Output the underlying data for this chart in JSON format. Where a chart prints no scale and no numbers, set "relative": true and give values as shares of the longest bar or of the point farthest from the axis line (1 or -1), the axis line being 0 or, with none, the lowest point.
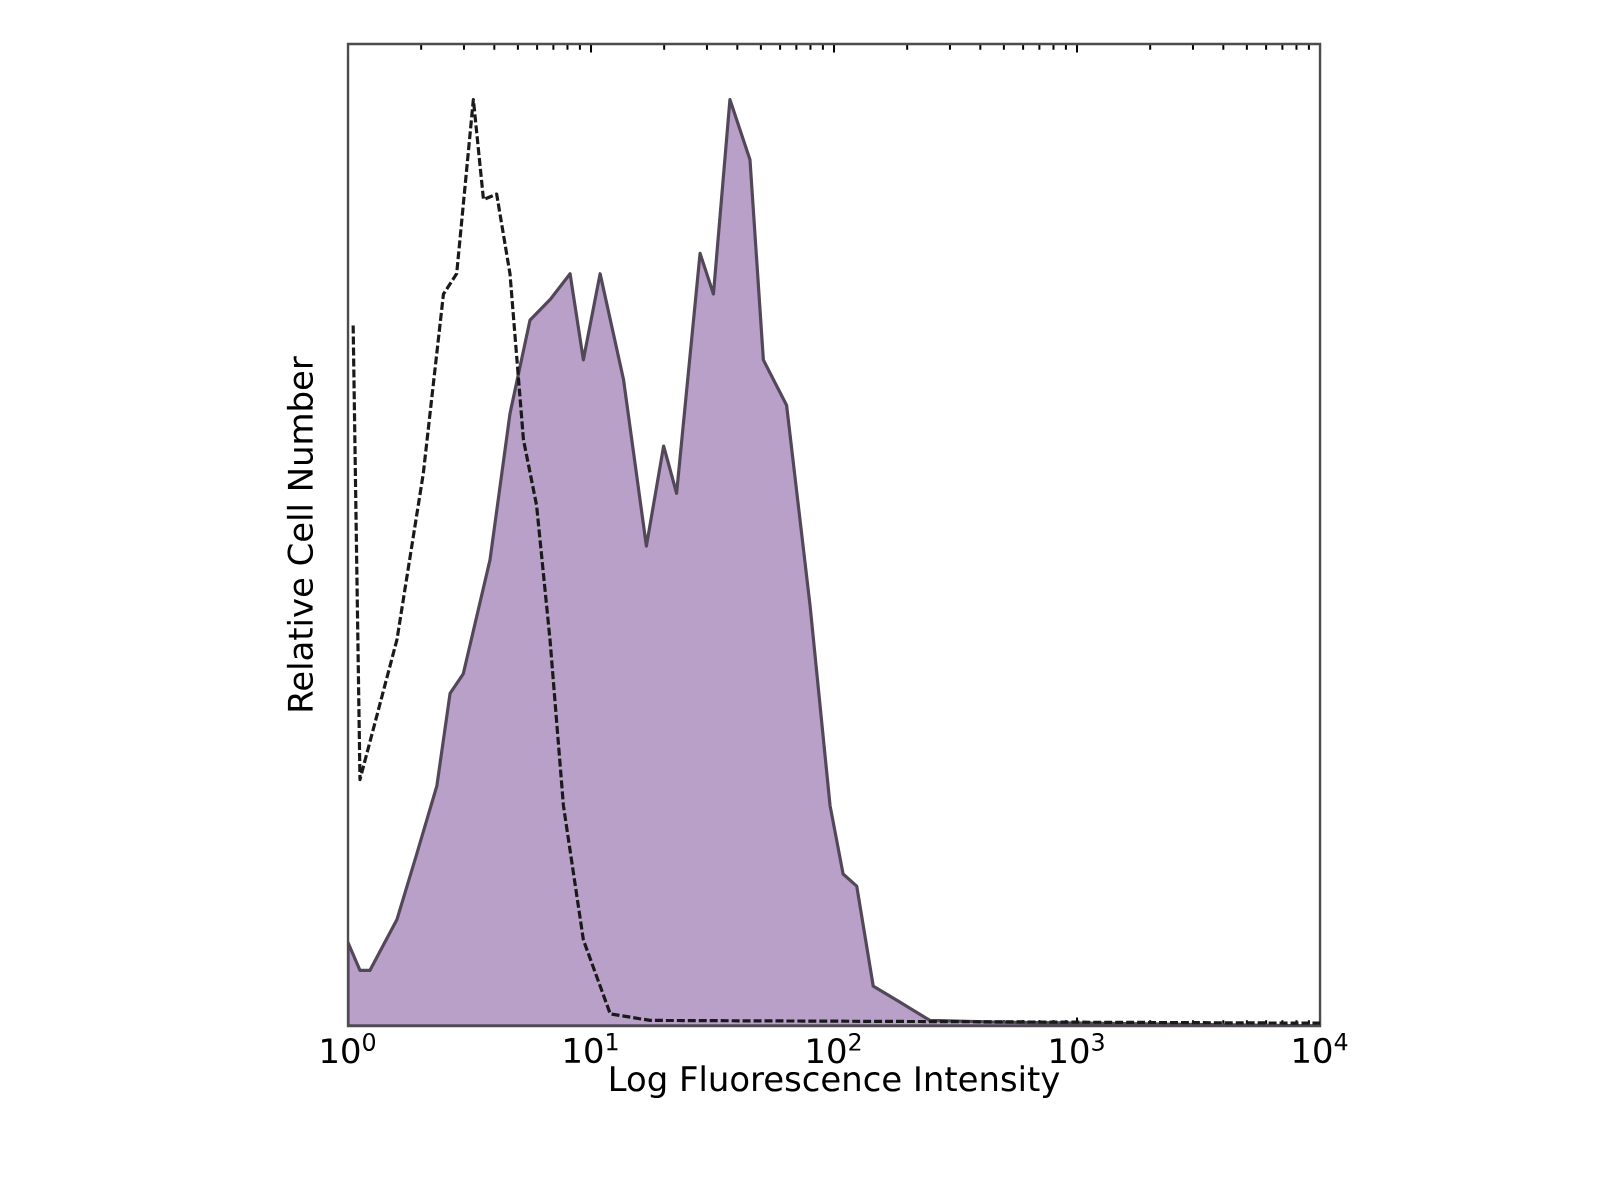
{
  "chart_data": {
    "type": "area",
    "relative": true,
    "log": "x",
    "grid": false,
    "xlabel": "Log Fluorescence Intensity",
    "ylabel": "Relative Cell Number",
    "xlim": [
      1,
      10000
    ],
    "xticks": [
      {
        "value": 1,
        "label": "10$^{0}$"
      },
      {
        "value": 10,
        "label": "10$^{1}$"
      },
      {
        "value": 100,
        "label": "10$^{2}$"
      },
      {
        "value": 1000,
        "label": "10$^{3}$"
      },
      {
        "value": 10000,
        "label": "10$^{4}$"
      }
    ],
    "series": [
      {
        "color": "#b8a0c8",
        "line_style": "solid",
        "x": [
          1.0,
          1.12,
          1.23,
          1.59,
          1.92,
          2.32,
          2.63,
          2.98,
          3.84,
          4.64,
          5.61,
          6.78,
          8.2,
          9.3,
          10.9,
          13.6,
          16.9,
          19.9,
          22.5,
          28.1,
          31.9,
          37.3,
          45.1,
          51.2,
          63.8,
          79.7,
          96.3,
          109,
          124,
          145,
          181,
          248,
          500,
          10000
        ],
        "values": [
          0.09,
          0.06,
          0.06,
          0.115,
          0.186,
          0.259,
          0.359,
          0.38,
          0.503,
          0.661,
          0.762,
          0.784,
          0.812,
          0.719,
          0.812,
          0.698,
          0.518,
          0.626,
          0.575,
          0.834,
          0.79,
          1.0,
          0.935,
          0.719,
          0.67,
          0.454,
          0.238,
          0.164,
          0.151,
          0.043,
          0.028,
          0.006,
          0.004,
          0.0
        ]
      },
      {
        "type": "line",
        "color": "#1a1a1a",
        "line_style": "dashed",
        "x": [
          1.05,
          1.12,
          1.59,
          2.04,
          2.47,
          2.8,
          3.28,
          3.61,
          4.09,
          4.64,
          5.27,
          5.97,
          6.78,
          7.7,
          9.3,
          12.0,
          17.5,
          10000
        ],
        "values": [
          0.756,
          0.266,
          0.417,
          0.596,
          0.79,
          0.812,
          1.0,
          0.892,
          0.898,
          0.812,
          0.633,
          0.562,
          0.417,
          0.238,
          0.093,
          0.013,
          0.006,
          0.003
        ]
      }
    ]
  }
}
